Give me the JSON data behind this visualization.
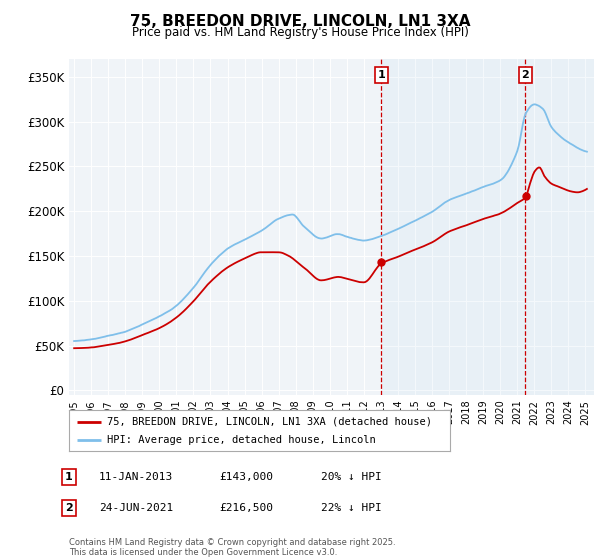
{
  "title": "75, BREEDON DRIVE, LINCOLN, LN1 3XA",
  "subtitle": "Price paid vs. HM Land Registry's House Price Index (HPI)",
  "ylabel_ticks": [
    "£0",
    "£50K",
    "£100K",
    "£150K",
    "£200K",
    "£250K",
    "£300K",
    "£350K"
  ],
  "ytick_values": [
    0,
    50000,
    100000,
    150000,
    200000,
    250000,
    300000,
    350000
  ],
  "ylim": [
    -5000,
    370000
  ],
  "xlim_start": 1994.7,
  "xlim_end": 2025.5,
  "hpi_color": "#7fbfea",
  "price_color": "#cc0000",
  "vline_color": "#cc0000",
  "purchase1_x": 2013.03,
  "purchase1_y": 143000,
  "purchase2_x": 2021.48,
  "purchase2_y": 216500,
  "legend_price_label": "75, BREEDON DRIVE, LINCOLN, LN1 3XA (detached house)",
  "legend_hpi_label": "HPI: Average price, detached house, Lincoln",
  "annotation1_date": "11-JAN-2013",
  "annotation1_price": "£143,000",
  "annotation1_hpi": "20% ↓ HPI",
  "annotation2_date": "24-JUN-2021",
  "annotation2_price": "£216,500",
  "annotation2_hpi": "22% ↓ HPI",
  "footer": "Contains HM Land Registry data © Crown copyright and database right 2025.\nThis data is licensed under the Open Government Licence v3.0.",
  "background_color": "#ffffff",
  "plot_bg_color": "#f0f4f8"
}
